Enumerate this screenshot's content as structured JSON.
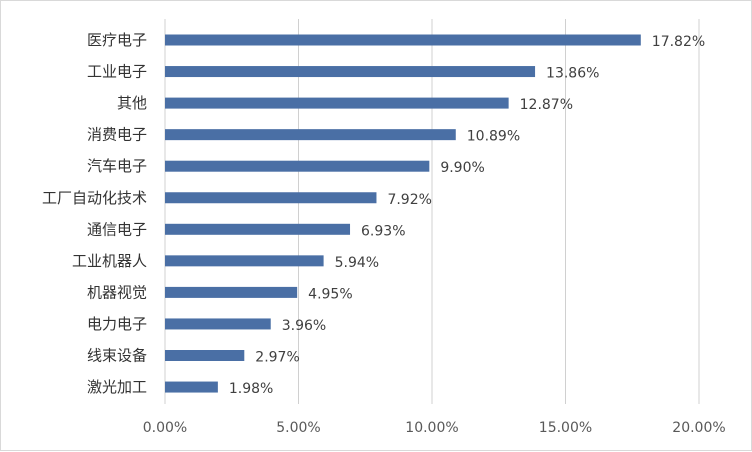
{
  "chart_data": {
    "type": "bar",
    "orientation": "horizontal",
    "categories": [
      "医疗电子",
      "工业电子",
      "其他",
      "消费电子",
      "汽车电子",
      "工厂自动化技术",
      "通信电子",
      "工业机器人",
      "机器视觉",
      "电力电子",
      "线束设备",
      "激光加工"
    ],
    "values": [
      17.82,
      13.86,
      12.87,
      10.89,
      9.9,
      7.92,
      6.93,
      5.94,
      4.95,
      3.96,
      2.97,
      1.98
    ],
    "value_labels": [
      "17.82%",
      "13.86%",
      "12.87%",
      "10.89%",
      "9.90%",
      "7.92%",
      "6.93%",
      "5.94%",
      "4.95%",
      "3.96%",
      "2.97%",
      "1.98%"
    ],
    "xlim": [
      0,
      20
    ],
    "xticks": [
      0,
      5,
      10,
      15,
      20
    ],
    "xtick_labels": [
      "0.00%",
      "5.00%",
      "10.00%",
      "15.00%",
      "20.00%"
    ],
    "title": "",
    "xlabel": "",
    "ylabel": "",
    "grid": "vertical",
    "legend": "none",
    "bar_color": "#4a6fa5",
    "grid_color": "#d0d0d0"
  }
}
